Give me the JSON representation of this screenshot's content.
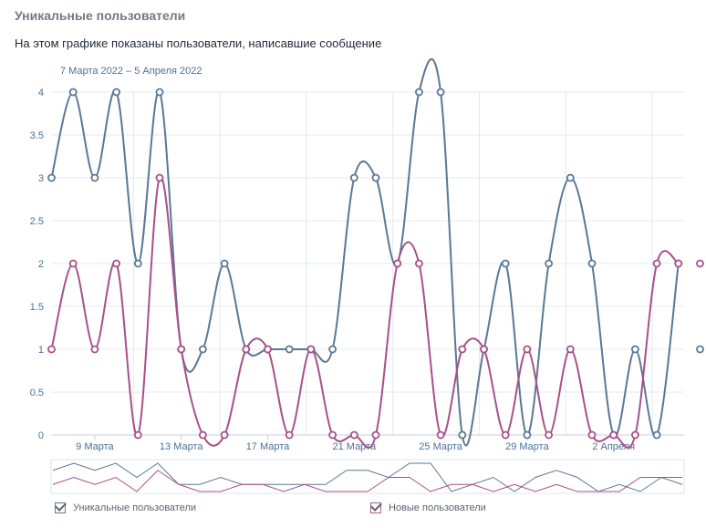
{
  "header": {
    "title": "Уникальные пользователи",
    "subtitle": "На этом графике показаны пользователи, написавшие сообщение",
    "range": "7 Марта 2022 – 5 Апреля 2022"
  },
  "colors": {
    "unique": "#5b7896",
    "new": "#a8508a",
    "grid": "#e4e8ec",
    "axis_text": "#4a6f9c"
  },
  "legend": {
    "unique_label": "Уникальные пользователи",
    "new_label": "Новые пользователи"
  },
  "chart_data": {
    "type": "line",
    "title": "Уникальные пользователи",
    "x": [
      "7 Марта",
      "8 Марта",
      "9 Марта",
      "10 Марта",
      "11 Марта",
      "12 Марта",
      "13 Марта",
      "14 Марта",
      "15 Марта",
      "16 Марта",
      "17 Марта",
      "18 Марта",
      "19 Марта",
      "20 Марта",
      "21 Марта",
      "22 Марта",
      "23 Марта",
      "24 Марта",
      "25 Марта",
      "26 Марта",
      "27 Марта",
      "28 Марта",
      "29 Марта",
      "30 Марта",
      "31 Марта",
      "1 Апреля",
      "2 Апреля",
      "3 Апреля",
      "4 Апреля",
      "5 Апреля"
    ],
    "x_tick_labels": [
      "9 Марта",
      "13 Марта",
      "17 Марта",
      "21 Марта",
      "25 Марта",
      "29 Марта",
      "2 Апреля"
    ],
    "y_tick_labels": [
      "0",
      "0.5",
      "1",
      "1.5",
      "2",
      "2.5",
      "3",
      "3.5",
      "4"
    ],
    "ylim": [
      0,
      4
    ],
    "grid": true,
    "legend_position": "bottom",
    "series": [
      {
        "name": "Уникальные пользователи",
        "values": [
          3,
          4,
          3,
          4,
          2,
          4,
          1,
          1,
          2,
          1,
          1,
          1,
          1,
          1,
          3,
          3,
          2,
          4,
          4,
          0,
          1,
          2,
          0,
          2,
          3,
          2,
          0,
          1,
          0,
          2
        ]
      },
      {
        "name": "Новые пользователи",
        "values": [
          1,
          2,
          1,
          2,
          0,
          3,
          1,
          0,
          0,
          1,
          1,
          0,
          1,
          0,
          0,
          0,
          2,
          2,
          0,
          1,
          1,
          0,
          1,
          0,
          1,
          0,
          0,
          0,
          2,
          2
        ]
      }
    ],
    "partial_last_point": {
      "Уникальные пользователи": 1
    }
  }
}
